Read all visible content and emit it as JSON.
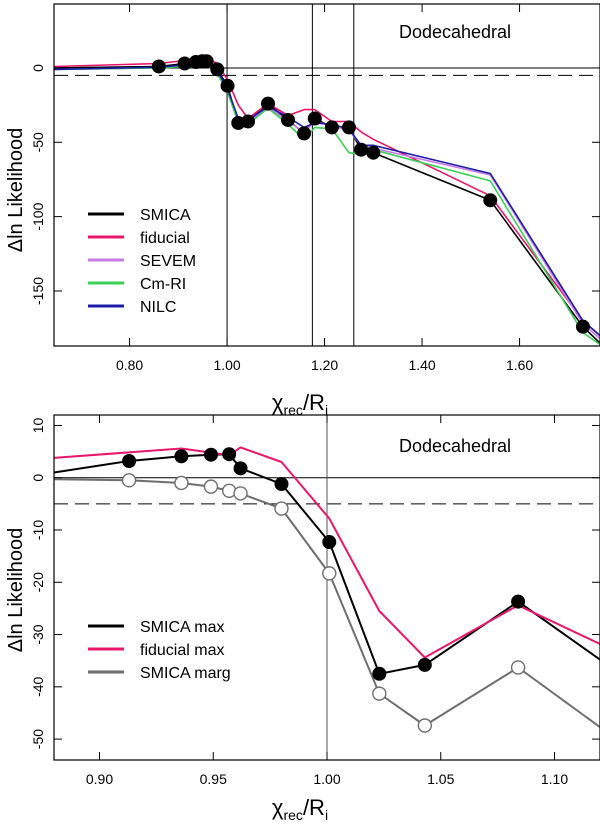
{
  "colors": {
    "black": "#000000",
    "fiducial": "#e8176b",
    "sevem": "#c77ae6",
    "cmri": "#3ccf55",
    "nilc": "#1c1ca8",
    "marg": "#6e6e6e"
  },
  "chart_data": [
    {
      "type": "line",
      "panel": "top",
      "title": "Dodecahedral",
      "xlabel_main": "χ",
      "xlabel_sub": "rec",
      "xlabel_mid": "/R",
      "xlabel_sub2": "i",
      "ylabel": "Δln Likelihood",
      "xlim": [
        0.645,
        1.765
      ],
      "ylim": [
        -187,
        43
      ],
      "xticks": [
        0.8,
        1.0,
        1.2,
        1.4,
        1.6
      ],
      "xtick_labels": [
        "0.80",
        "1.00",
        "1.20",
        "1.40",
        "1.60"
      ],
      "yticks": [
        0,
        -50,
        -100,
        -150
      ],
      "ytick_labels": [
        "0",
        "-50",
        "-100",
        "-150"
      ],
      "hlines": [
        {
          "y": 0,
          "style": "solid"
        },
        {
          "y": -5,
          "style": "dashed"
        }
      ],
      "vlines": [
        1.0,
        1.175,
        1.26
      ],
      "legend_position": "bottom-left",
      "series": [
        {
          "name": "SMICA",
          "color": "black",
          "x": [
            0.645,
            0.86,
            0.913,
            0.936,
            0.949,
            0.958,
            0.962,
            0.98,
            1.001,
            1.023,
            1.043,
            1.084,
            1.125,
            1.158,
            1.18,
            1.215,
            1.25,
            1.275,
            1.3,
            1.54,
            1.73,
            1.765
          ],
          "y": [
            0,
            1,
            3,
            4,
            4.5,
            4.5,
            2,
            -1,
            -12,
            -37,
            -36,
            -24,
            -35,
            -44,
            -34,
            -40,
            -40,
            -55,
            -57,
            -89,
            -174,
            -185
          ]
        },
        {
          "name": "fiducial",
          "color": "fiducial",
          "x": [
            0.645,
            0.86,
            0.913,
            0.936,
            0.949,
            0.958,
            0.962,
            0.98,
            1.001,
            1.023,
            1.043,
            1.084,
            1.125,
            1.158,
            1.18,
            1.215,
            1.25,
            1.275,
            1.3,
            1.54,
            1.73,
            1.765
          ],
          "y": [
            1,
            3,
            5,
            5.5,
            5,
            5,
            6,
            3,
            -8,
            -25,
            -34,
            -24,
            -32,
            -28,
            -28,
            -36,
            -36,
            -43,
            -48,
            -86,
            -170,
            -180
          ]
        },
        {
          "name": "SEVEM",
          "color": "sevem",
          "x": [
            0.645,
            0.86,
            0.913,
            0.936,
            0.949,
            0.958,
            0.962,
            0.98,
            1.001,
            1.023,
            1.043,
            1.084,
            1.125,
            1.158,
            1.18,
            1.215,
            1.25,
            1.275,
            1.3,
            1.54,
            1.73,
            1.765
          ],
          "y": [
            -1,
            0,
            1.5,
            2.5,
            3,
            3,
            1,
            -3,
            -15,
            -35,
            -37,
            -26,
            -36,
            -43,
            -36,
            -39,
            -42,
            -52,
            -54,
            -72,
            -172,
            -182
          ]
        },
        {
          "name": "Cm-RI",
          "color": "cmri",
          "x": [
            0.645,
            0.86,
            0.913,
            0.936,
            0.949,
            0.958,
            0.962,
            0.98,
            1.001,
            1.023,
            1.043,
            1.084,
            1.125,
            1.158,
            1.18,
            1.215,
            1.25,
            1.275,
            1.3,
            1.54,
            1.73,
            1.765
          ],
          "y": [
            -1,
            0,
            1,
            2,
            3,
            3,
            1,
            -4,
            -16,
            -37,
            -38,
            -27,
            -38,
            -48,
            -40,
            -41,
            -57,
            -58,
            -55,
            -76,
            -178,
            -186
          ]
        },
        {
          "name": "NILC",
          "color": "nilc",
          "x": [
            0.645,
            0.86,
            0.913,
            0.936,
            0.949,
            0.958,
            0.962,
            0.98,
            1.001,
            1.023,
            1.043,
            1.084,
            1.125,
            1.158,
            1.18,
            1.215,
            1.25,
            1.275,
            1.3,
            1.54,
            1.73,
            1.765
          ],
          "y": [
            -1,
            0.5,
            2,
            3,
            3.5,
            3.5,
            1.5,
            -2,
            -14,
            -34,
            -35,
            -26,
            -33,
            -40,
            -37,
            -38,
            -41,
            -52,
            -52,
            -71,
            -170,
            -180
          ]
        }
      ],
      "markers": [
        {
          "series": "SMICA",
          "fill": true,
          "x": [
            0.86,
            0.913,
            0.936,
            0.949,
            0.958,
            0.98,
            1.001,
            1.023,
            1.043,
            1.084,
            1.125,
            1.158,
            1.18,
            1.215,
            1.25,
            1.275,
            1.3,
            1.54,
            1.73
          ],
          "y": [
            1,
            3,
            4,
            4.5,
            4.5,
            -1,
            -12,
            -37,
            -36,
            -24,
            -35,
            -44,
            -34,
            -40,
            -40,
            -55,
            -57,
            -89,
            -174
          ]
        }
      ],
      "legend": [
        {
          "label": "SMICA",
          "color": "black"
        },
        {
          "label": "fiducial",
          "color": "fiducial"
        },
        {
          "label": "SEVEM",
          "color": "sevem"
        },
        {
          "label": "Cm-RI",
          "color": "cmri"
        },
        {
          "label": "NILC",
          "color": "nilc"
        }
      ]
    },
    {
      "type": "line",
      "panel": "bottom",
      "title": "Dodecahedral",
      "xlabel_main": "χ",
      "xlabel_sub": "rec",
      "xlabel_mid": "/R",
      "xlabel_sub2": "i",
      "ylabel": "Δln Likelihood",
      "xlim": [
        0.88,
        1.12
      ],
      "ylim": [
        -54,
        12
      ],
      "xticks": [
        0.9,
        0.95,
        1.0,
        1.05,
        1.1
      ],
      "xtick_labels": [
        "0.90",
        "0.95",
        "1.00",
        "1.05",
        "1.10"
      ],
      "yticks": [
        10,
        0,
        -10,
        -20,
        -30,
        -40,
        -50
      ],
      "ytick_labels": [
        "10",
        "0",
        "-10",
        "-20",
        "-30",
        "-40",
        "-50"
      ],
      "hlines": [
        {
          "y": 0,
          "style": "solid"
        },
        {
          "y": -5,
          "style": "dashed"
        }
      ],
      "vlines": [
        1.0
      ],
      "legend_position": "left-middle",
      "series": [
        {
          "name": "SMICA max",
          "color": "black",
          "x": [
            0.88,
            0.913,
            0.936,
            0.949,
            0.957,
            0.962,
            0.98,
            1.001,
            1.023,
            1.043,
            1.084,
            1.12
          ],
          "y": [
            1,
            3.2,
            4.1,
            4.4,
            4.5,
            1.8,
            -1.2,
            -12.3,
            -37.5,
            -35.8,
            -23.7,
            -34.8
          ]
        },
        {
          "name": "fiducial max",
          "color": "fiducial",
          "x": [
            0.88,
            0.936,
            0.949,
            0.957,
            0.962,
            0.98,
            1.001,
            1.023,
            1.043,
            1.084,
            1.12
          ],
          "y": [
            3.8,
            5.6,
            4.8,
            4.3,
            5.8,
            3.0,
            -7.8,
            -25.5,
            -34.4,
            -24.4,
            -31.8
          ]
        },
        {
          "name": "SMICA marg",
          "color": "marg",
          "x": [
            0.88,
            0.913,
            0.936,
            0.949,
            0.957,
            0.962,
            0.98,
            1.001,
            1.023,
            1.043,
            1.084,
            1.12
          ],
          "y": [
            -0.3,
            -0.5,
            -1.0,
            -1.7,
            -2.5,
            -3.0,
            -5.9,
            -18.3,
            -41.3,
            -47.4,
            -36.3,
            -47.7
          ]
        }
      ],
      "markers": [
        {
          "series": "SMICA max",
          "fill": true,
          "x": [
            0.913,
            0.936,
            0.949,
            0.957,
            0.962,
            0.98,
            1.001,
            1.023,
            1.043,
            1.084
          ],
          "y": [
            3.2,
            4.1,
            4.4,
            4.5,
            1.8,
            -1.2,
            -12.3,
            -37.5,
            -35.8,
            -23.7
          ]
        },
        {
          "series": "SMICA marg",
          "fill": false,
          "x": [
            0.913,
            0.936,
            0.949,
            0.957,
            0.962,
            0.98,
            1.001,
            1.023,
            1.043,
            1.084
          ],
          "y": [
            -0.5,
            -1.0,
            -1.7,
            -2.5,
            -3.0,
            -5.9,
            -18.3,
            -41.3,
            -47.4,
            -36.3
          ]
        }
      ],
      "legend": [
        {
          "label": "SMICA max",
          "color": "black"
        },
        {
          "label": "fiducial max",
          "color": "fiducial"
        },
        {
          "label": "SMICA marg",
          "color": "marg"
        }
      ]
    }
  ]
}
